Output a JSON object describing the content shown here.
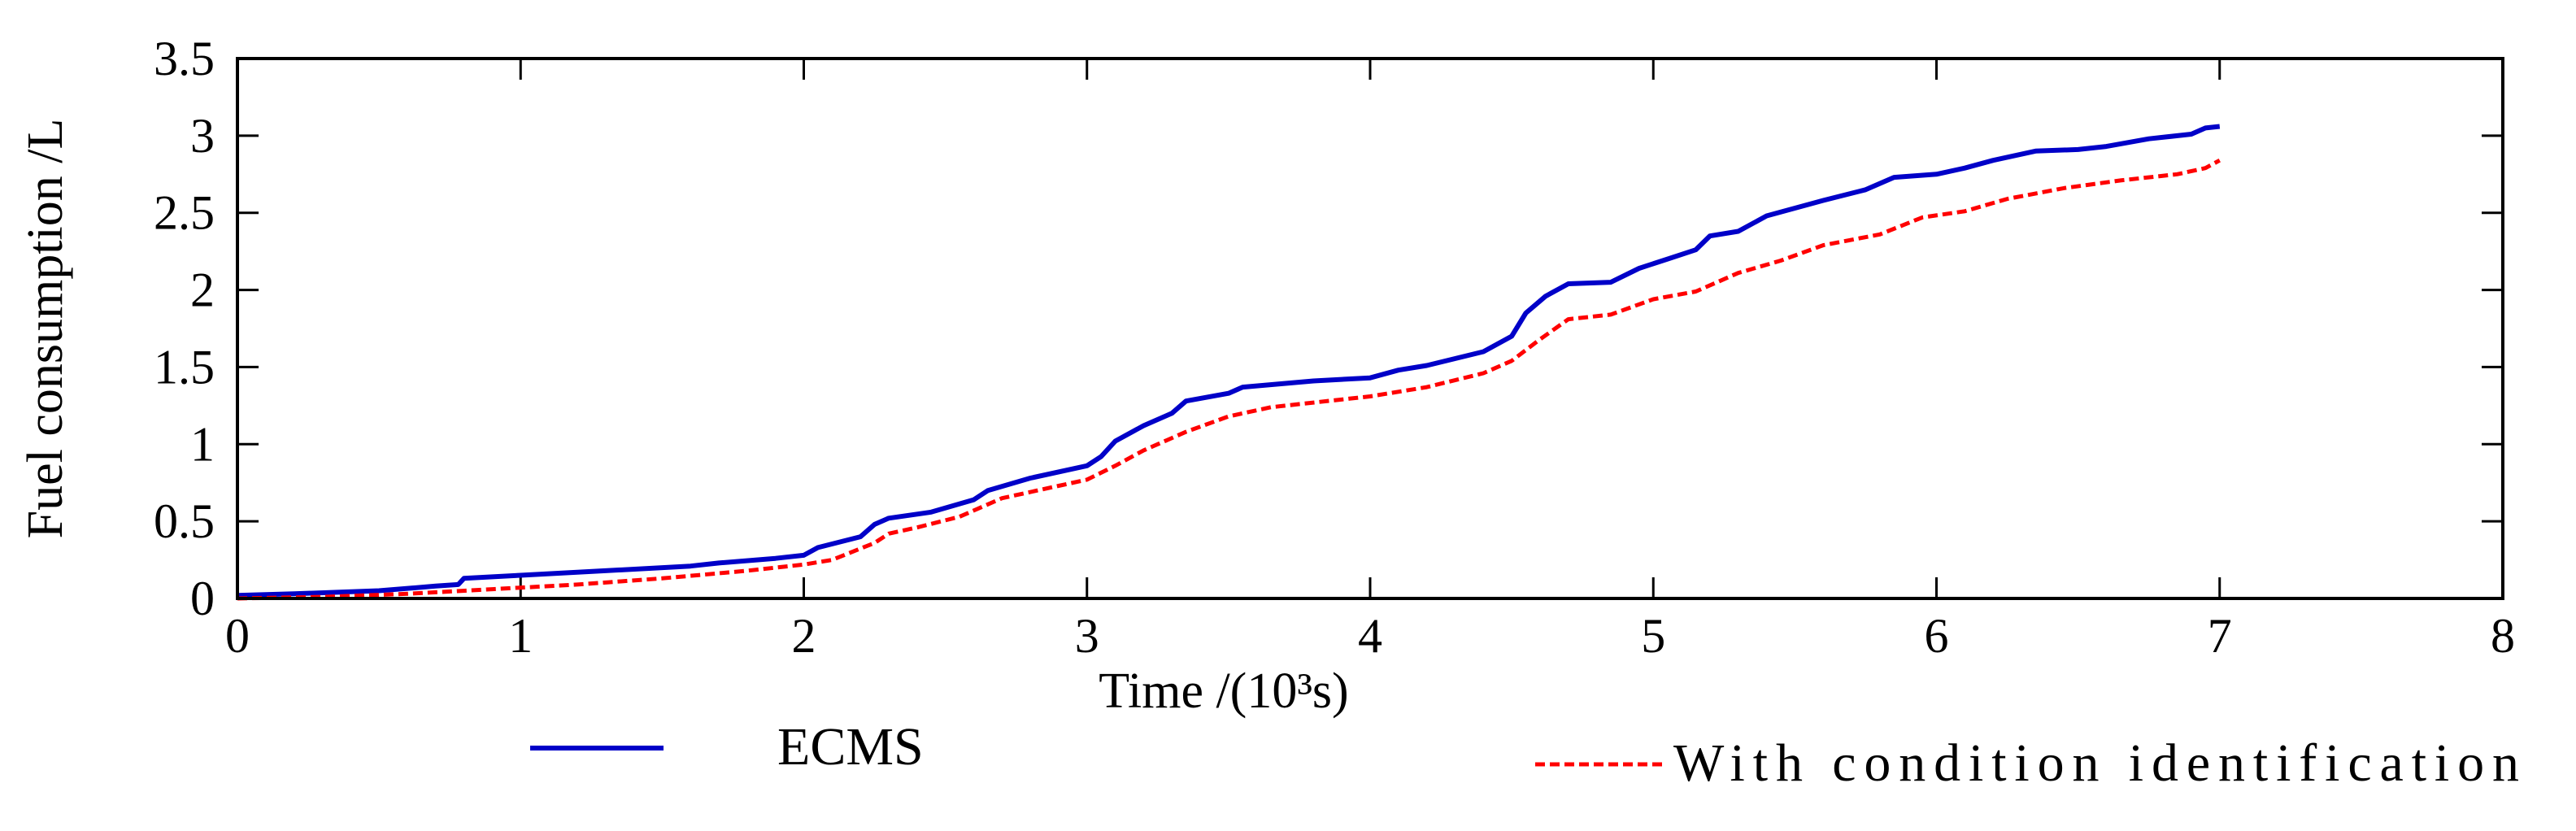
{
  "chart_data": {
    "type": "line",
    "title": "",
    "xlabel": "Time /(10³s)",
    "ylabel": "Fuel consumption /L",
    "xlim": [
      0,
      8
    ],
    "ylim": [
      0,
      3.5
    ],
    "xticks": [
      0,
      1,
      2,
      3,
      4,
      5,
      6,
      7,
      8
    ],
    "yticks": [
      0,
      0.5,
      1,
      1.5,
      2,
      2.5,
      3,
      3.5
    ],
    "xtick_labels": [
      "0",
      "1",
      "2",
      "3",
      "4",
      "5",
      "6",
      "7",
      "8"
    ],
    "ytick_labels": [
      "0",
      "0.5",
      "1",
      "1.5",
      "2",
      "2.5",
      "3",
      "3.5"
    ],
    "grid": false,
    "legend_position": "bottom",
    "series": [
      {
        "name": "ECMS",
        "color": "#0000c8",
        "style": "solid",
        "points": [
          [
            0,
            0.02
          ],
          [
            0.2,
            0.03
          ],
          [
            0.5,
            0.05
          ],
          [
            0.7,
            0.08
          ],
          [
            0.78,
            0.09
          ],
          [
            0.8,
            0.13
          ],
          [
            1.0,
            0.15
          ],
          [
            1.3,
            0.18
          ],
          [
            1.6,
            0.21
          ],
          [
            1.7,
            0.23
          ],
          [
            1.9,
            0.26
          ],
          [
            2.0,
            0.28
          ],
          [
            2.05,
            0.33
          ],
          [
            2.2,
            0.4
          ],
          [
            2.25,
            0.48
          ],
          [
            2.3,
            0.52
          ],
          [
            2.45,
            0.56
          ],
          [
            2.6,
            0.64
          ],
          [
            2.65,
            0.7
          ],
          [
            2.8,
            0.78
          ],
          [
            3.0,
            0.86
          ],
          [
            3.05,
            0.92
          ],
          [
            3.1,
            1.02
          ],
          [
            3.2,
            1.12
          ],
          [
            3.3,
            1.2
          ],
          [
            3.35,
            1.28
          ],
          [
            3.5,
            1.33
          ],
          [
            3.55,
            1.37
          ],
          [
            3.8,
            1.41
          ],
          [
            4.0,
            1.43
          ],
          [
            4.1,
            1.48
          ],
          [
            4.2,
            1.51
          ],
          [
            4.4,
            1.6
          ],
          [
            4.5,
            1.7
          ],
          [
            4.55,
            1.85
          ],
          [
            4.62,
            1.96
          ],
          [
            4.7,
            2.04
          ],
          [
            4.85,
            2.05
          ],
          [
            4.95,
            2.14
          ],
          [
            5.05,
            2.2
          ],
          [
            5.15,
            2.26
          ],
          [
            5.2,
            2.35
          ],
          [
            5.3,
            2.38
          ],
          [
            5.4,
            2.48
          ],
          [
            5.5,
            2.53
          ],
          [
            5.6,
            2.58
          ],
          [
            5.75,
            2.65
          ],
          [
            5.85,
            2.73
          ],
          [
            6.0,
            2.75
          ],
          [
            6.1,
            2.79
          ],
          [
            6.2,
            2.84
          ],
          [
            6.35,
            2.9
          ],
          [
            6.5,
            2.91
          ],
          [
            6.6,
            2.93
          ],
          [
            6.75,
            2.98
          ],
          [
            6.9,
            3.01
          ],
          [
            6.95,
            3.05
          ],
          [
            7.0,
            3.06
          ]
        ]
      },
      {
        "name": "With condition identification",
        "color": "#ff0000",
        "style": "dashed",
        "points": [
          [
            0,
            0.0
          ],
          [
            0.3,
            0.01
          ],
          [
            0.6,
            0.03
          ],
          [
            0.9,
            0.06
          ],
          [
            1.2,
            0.09
          ],
          [
            1.5,
            0.13
          ],
          [
            1.8,
            0.18
          ],
          [
            2.0,
            0.22
          ],
          [
            2.1,
            0.25
          ],
          [
            2.25,
            0.36
          ],
          [
            2.3,
            0.42
          ],
          [
            2.4,
            0.46
          ],
          [
            2.55,
            0.53
          ],
          [
            2.7,
            0.65
          ],
          [
            2.9,
            0.73
          ],
          [
            3.0,
            0.77
          ],
          [
            3.1,
            0.86
          ],
          [
            3.2,
            0.96
          ],
          [
            3.35,
            1.08
          ],
          [
            3.5,
            1.18
          ],
          [
            3.65,
            1.24
          ],
          [
            3.8,
            1.27
          ],
          [
            4.0,
            1.31
          ],
          [
            4.2,
            1.37
          ],
          [
            4.4,
            1.46
          ],
          [
            4.5,
            1.54
          ],
          [
            4.6,
            1.68
          ],
          [
            4.7,
            1.81
          ],
          [
            4.85,
            1.84
          ],
          [
            5.0,
            1.94
          ],
          [
            5.15,
            1.99
          ],
          [
            5.3,
            2.11
          ],
          [
            5.45,
            2.19
          ],
          [
            5.6,
            2.29
          ],
          [
            5.8,
            2.36
          ],
          [
            5.95,
            2.47
          ],
          [
            6.1,
            2.51
          ],
          [
            6.25,
            2.59
          ],
          [
            6.45,
            2.66
          ],
          [
            6.65,
            2.71
          ],
          [
            6.85,
            2.75
          ],
          [
            6.95,
            2.79
          ],
          [
            7.0,
            2.84
          ]
        ]
      }
    ]
  }
}
